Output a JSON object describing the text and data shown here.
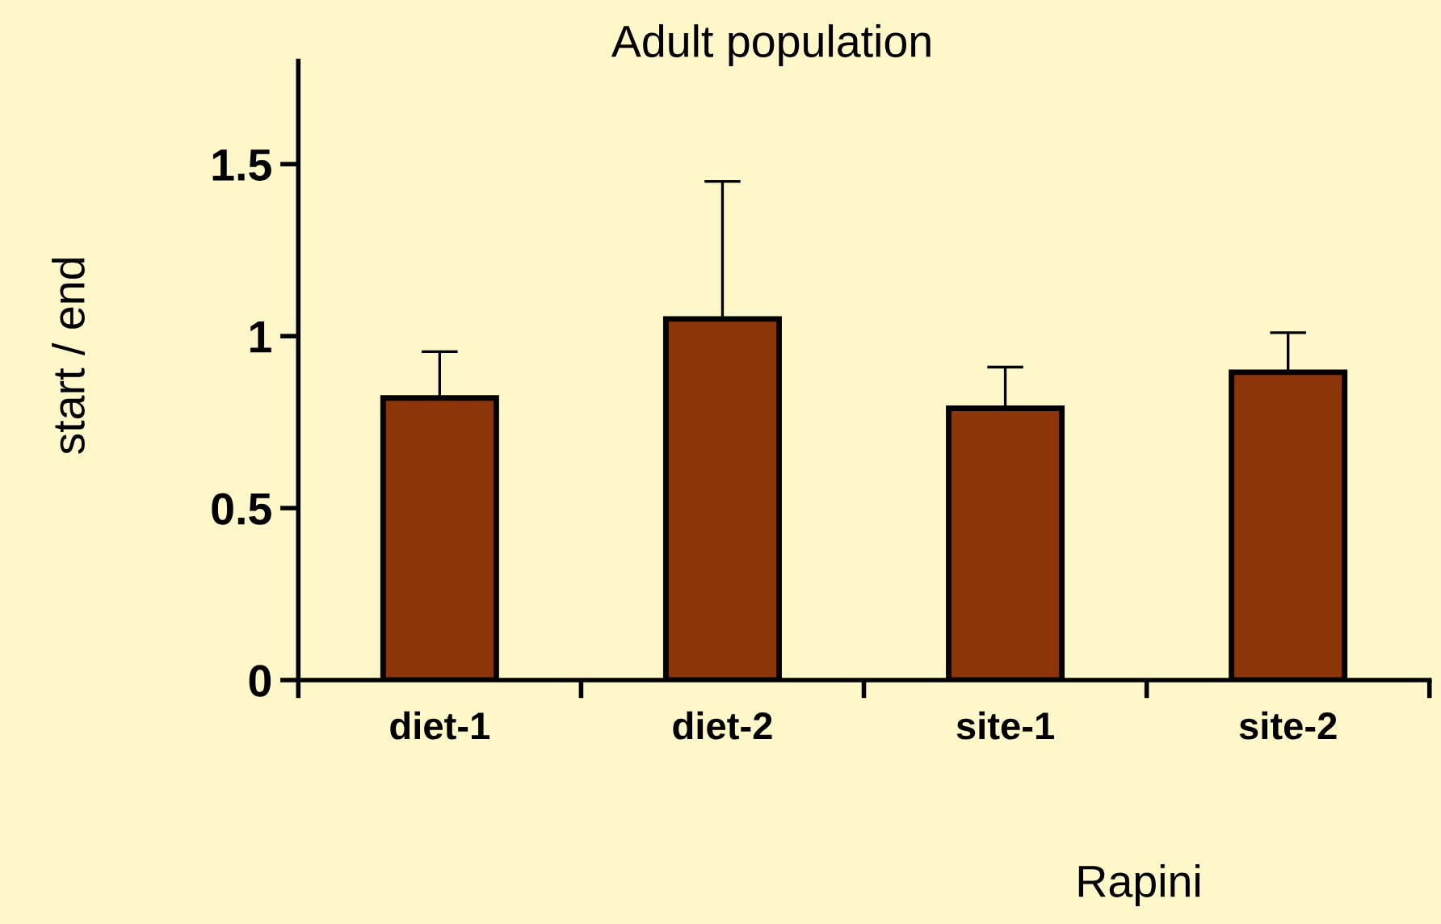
{
  "chart_data": {
    "type": "bar",
    "title": "Adult population",
    "xlabel": "Rapini",
    "ylabel": "start / end",
    "categories": [
      "diet-1",
      "diet-2",
      "site-1",
      "site-2"
    ],
    "values": [
      0.82,
      1.05,
      0.79,
      0.895
    ],
    "errors": [
      [
        0.82,
        0.955
      ],
      [
        1.05,
        1.45
      ],
      [
        0.79,
        0.91
      ],
      [
        0.895,
        1.01
      ]
    ],
    "color": "#8b3508",
    "ylim": [
      0,
      1.8
    ],
    "yticks": [
      0,
      0.5,
      1,
      1.5
    ],
    "grid": false,
    "legend": false
  }
}
